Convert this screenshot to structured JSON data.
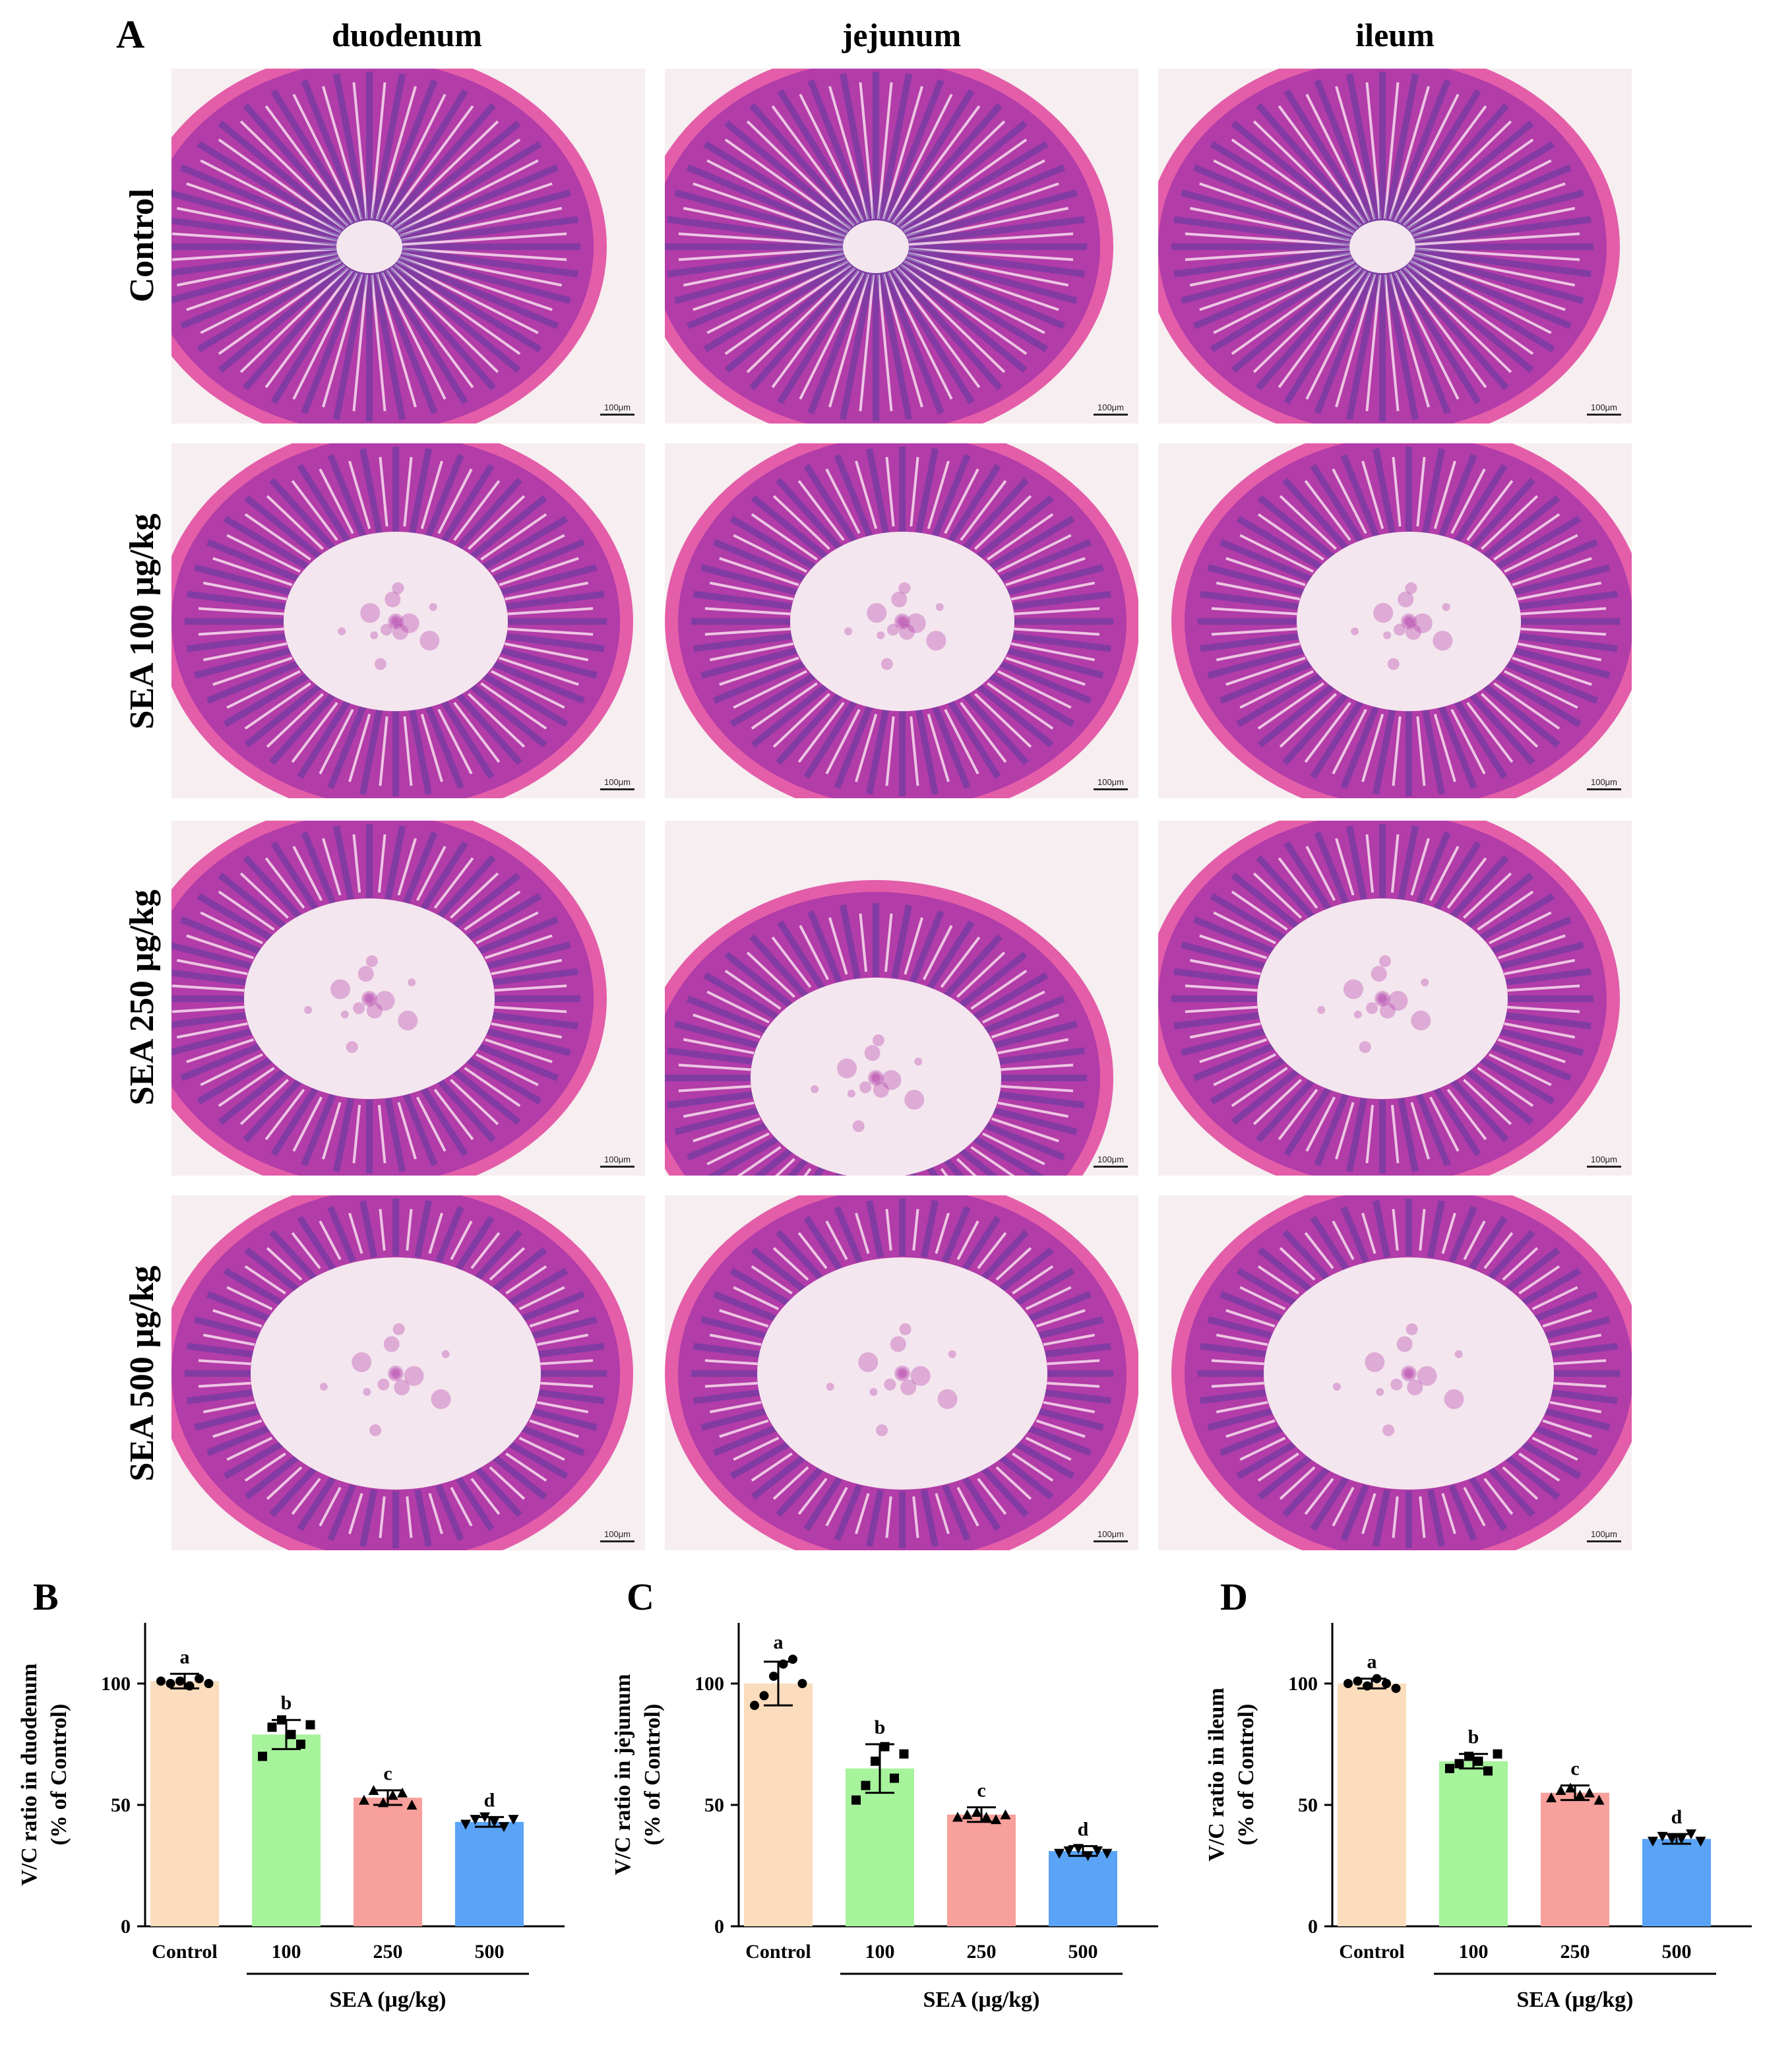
{
  "panelA": {
    "letter": "A",
    "columns": [
      "duodenum",
      "jejunum",
      "ileum"
    ],
    "rows": [
      "Control",
      "SEA 100 μg/kg",
      "SEA 250 μg/kg",
      "SEA 500 μg/kg"
    ],
    "scalebar": "100μm"
  },
  "colors": {
    "tissue": "#b23ca8",
    "tissue_dark": "#5b3a9e",
    "lumen": "#f4e6ee",
    "background": "#f6eef0",
    "control_bar": "#fbdcbc",
    "sea100_bar": "#a6f39c",
    "sea250_bar": "#f8a09b",
    "sea500_bar": "#5aa3f7"
  },
  "chart_data": [
    {
      "type": "bar",
      "letter": "B",
      "categories": [
        "Control",
        "100",
        "250",
        "500"
      ],
      "values": [
        101,
        79,
        53,
        43
      ],
      "errors": [
        3,
        6,
        3,
        2
      ],
      "points": [
        [
          101,
          100,
          101,
          99,
          102,
          100
        ],
        [
          70,
          82,
          85,
          79,
          75,
          83
        ],
        [
          52,
          56,
          51,
          54,
          55,
          50
        ],
        [
          42,
          44,
          45,
          43,
          41,
          44
        ]
      ],
      "letters": [
        "a",
        "b",
        "c",
        "d"
      ],
      "ylabel": "V/C ratio in duodenum",
      "ylabel2": "(% of Control)",
      "xgroup_label": "SEA (μg/kg)",
      "ylim": [
        0,
        125
      ],
      "yticks": [
        "0",
        "50",
        "100"
      ]
    },
    {
      "type": "bar",
      "letter": "C",
      "categories": [
        "Control",
        "100",
        "250",
        "500"
      ],
      "values": [
        100,
        65,
        46,
        31
      ],
      "errors": [
        9,
        10,
        3,
        2
      ],
      "points": [
        [
          91,
          95,
          103,
          108,
          110,
          100
        ],
        [
          52,
          58,
          68,
          74,
          61,
          71
        ],
        [
          45,
          46,
          47,
          45,
          44,
          46
        ],
        [
          30,
          31,
          32,
          29,
          31,
          30
        ]
      ],
      "letters": [
        "a",
        "b",
        "c",
        "d"
      ],
      "ylabel": "V/C ratio in jejunum",
      "ylabel2": "(% of Control)",
      "xgroup_label": "SEA (μg/kg)",
      "ylim": [
        0,
        125
      ],
      "yticks": [
        "0",
        "50",
        "100"
      ]
    },
    {
      "type": "bar",
      "letter": "D",
      "categories": [
        "Control",
        "100",
        "250",
        "500"
      ],
      "values": [
        100,
        68,
        55,
        36
      ],
      "errors": [
        2,
        3,
        3,
        2
      ],
      "points": [
        [
          100,
          101,
          99,
          102,
          100,
          98
        ],
        [
          65,
          67,
          70,
          68,
          64,
          71
        ],
        [
          53,
          56,
          57,
          54,
          55,
          52
        ],
        [
          35,
          37,
          36,
          36,
          38,
          35
        ]
      ],
      "letters": [
        "a",
        "b",
        "c",
        "d"
      ],
      "ylabel": "V/C ratio in ileum",
      "ylabel2": "(% of Control)",
      "xgroup_label": "SEA (μg/kg)",
      "ylim": [
        0,
        125
      ],
      "yticks": [
        "0",
        "50",
        "100"
      ]
    }
  ]
}
